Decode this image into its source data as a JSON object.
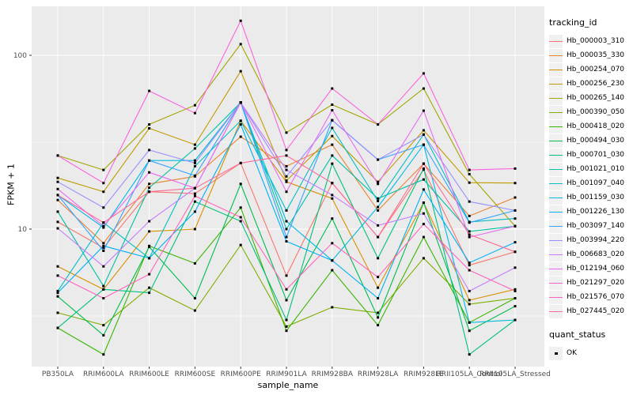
{
  "figure": {
    "background": "#FFFFFF"
  },
  "panel": {
    "background": "#EBEBEB",
    "grid_color": "#FFFFFF",
    "tick_color": "#333333",
    "axis_text_color": "#4D4D4D"
  },
  "legend": {
    "tracking_title": "tracking_id",
    "quant_title": "quant_status",
    "quant_value": "OK",
    "key_background": "#F0F0F0",
    "point_color": "#000000"
  },
  "chart_data": {
    "type": "line",
    "title": "",
    "xlabel": "sample_name",
    "ylabel": "FPKM + 1",
    "yscale": "log10",
    "y_major_ticks": [
      100,
      10
    ],
    "y_minor_gridlines": [
      31.623,
      3.1623
    ],
    "ylim": [
      1.6,
      190
    ],
    "grid": true,
    "legend_position": "right",
    "point_shape": "filled-square",
    "point_color": "#000000",
    "x_categories": [
      "PB350LA",
      "RRIM600LA",
      "RRIM600LE",
      "RRIM600SE",
      "RRIM600PE",
      "RRIM901LA",
      "RRIM928BA",
      "RRIM928LA",
      "RRIM928LE",
      "RRII105LA_Control",
      "RRII105LA_Stressed"
    ],
    "series": [
      {
        "name": "Hb_000003_310",
        "color": "#F8766D",
        "values": [
          11.0,
          7.8,
          16.4,
          16.0,
          24.0,
          5.4,
          18.4,
          9.0,
          22.0,
          6.2,
          7.4
        ]
      },
      {
        "name": "Hb_000035_330",
        "color": "#EA8331",
        "values": [
          14.7,
          8.3,
          18.2,
          20.1,
          34.0,
          23.0,
          30.6,
          12.8,
          23.8,
          11.9,
          15.2
        ]
      },
      {
        "name": "Hb_000254_070",
        "color": "#D89000",
        "values": [
          6.1,
          4.5,
          9.7,
          10.0,
          42.0,
          18.7,
          15.0,
          4.6,
          14.2,
          3.9,
          4.5
        ]
      },
      {
        "name": "Hb_000256_230",
        "color": "#C09B00",
        "values": [
          19.7,
          16.4,
          38.0,
          30.6,
          81.0,
          19.0,
          34.3,
          18.7,
          37.0,
          18.5,
          18.4
        ]
      },
      {
        "name": "Hb_000265_140",
        "color": "#A3A500",
        "values": [
          26.5,
          21.9,
          40.0,
          51.6,
          116.0,
          35.9,
          52.0,
          40.0,
          64.4,
          20.7,
          10.4
        ]
      },
      {
        "name": "Hb_000390_050",
        "color": "#7CAE00",
        "values": [
          3.3,
          2.8,
          4.6,
          3.4,
          8.1,
          2.75,
          3.55,
          3.3,
          6.8,
          3.7,
          4.0
        ]
      },
      {
        "name": "Hb_000418_020",
        "color": "#39B600",
        "values": [
          2.7,
          1.9,
          8.0,
          6.35,
          13.3,
          2.6,
          5.8,
          2.8,
          9.0,
          2.9,
          4.0
        ]
      },
      {
        "name": "Hb_000494_030",
        "color": "#00BB4E",
        "values": [
          4.1,
          2.45,
          7.9,
          4.0,
          18.2,
          3.9,
          11.5,
          3.1,
          14.2,
          2.6,
          3.6
        ]
      },
      {
        "name": "Hb_000701_030",
        "color": "#00BF7D",
        "values": [
          2.7,
          4.5,
          4.3,
          14.4,
          11.1,
          3.0,
          23.8,
          6.8,
          22.3,
          1.9,
          3.0
        ]
      },
      {
        "name": "Hb_001021_010",
        "color": "#00C1A3",
        "values": [
          12.6,
          4.7,
          17.3,
          29.1,
          53.5,
          10.0,
          26.5,
          15.0,
          19.3,
          9.7,
          10.4
        ]
      },
      {
        "name": "Hb_001097_040",
        "color": "#00BFC4",
        "values": [
          4.4,
          10.9,
          6.8,
          23.0,
          42.0,
          12.8,
          38.2,
          14.5,
          35.0,
          11.0,
          11.5
        ]
      },
      {
        "name": "Hb_001159_030",
        "color": "#00BAE0",
        "values": [
          15.7,
          10.2,
          24.8,
          24.8,
          53.5,
          11.1,
          6.6,
          13.4,
          30.6,
          2.9,
          3.0
        ]
      },
      {
        "name": "Hb_001226_130",
        "color": "#00B0F6",
        "values": [
          4.3,
          8.0,
          6.8,
          12.6,
          40.0,
          8.5,
          6.6,
          4.0,
          16.9,
          6.4,
          8.4
        ]
      },
      {
        "name": "Hb_003097_140",
        "color": "#35A2FF",
        "values": [
          15.7,
          7.5,
          24.8,
          20.3,
          53.5,
          9.0,
          42.3,
          25.1,
          30.6,
          10.9,
          12.8
        ]
      },
      {
        "name": "Hb_003994_220",
        "color": "#9590FF",
        "values": [
          18.7,
          13.3,
          28.5,
          24.0,
          53.5,
          20.1,
          42.3,
          25.1,
          35.0,
          14.4,
          12.8
        ]
      },
      {
        "name": "Hb_006683_020",
        "color": "#C77CFF",
        "values": [
          10.1,
          6.1,
          11.1,
          17.2,
          53.5,
          21.9,
          15.7,
          10.5,
          12.3,
          4.4,
          6.0
        ]
      },
      {
        "name": "Hb_012194_060",
        "color": "#E76BF3",
        "values": [
          17.0,
          10.4,
          21.2,
          17.2,
          53.5,
          16.4,
          48.3,
          18.2,
          48.0,
          9.0,
          10.4
        ]
      },
      {
        "name": "Hb_021297_020",
        "color": "#FA62DB",
        "values": [
          26.5,
          18.4,
          62.4,
          46.5,
          158.0,
          28.5,
          64.4,
          40.0,
          78.7,
          21.9,
          22.3
        ]
      },
      {
        "name": "Hb_021576_070",
        "color": "#FF62BC",
        "values": [
          5.4,
          4.0,
          5.5,
          15.5,
          11.7,
          4.5,
          8.3,
          5.3,
          10.7,
          5.8,
          4.4
        ]
      },
      {
        "name": "Hb_027445_020",
        "color": "#FF6A98",
        "values": [
          15.7,
          10.9,
          16.4,
          17.2,
          24.0,
          26.5,
          18.4,
          9.0,
          23.8,
          9.3,
          7.4
        ]
      }
    ]
  }
}
